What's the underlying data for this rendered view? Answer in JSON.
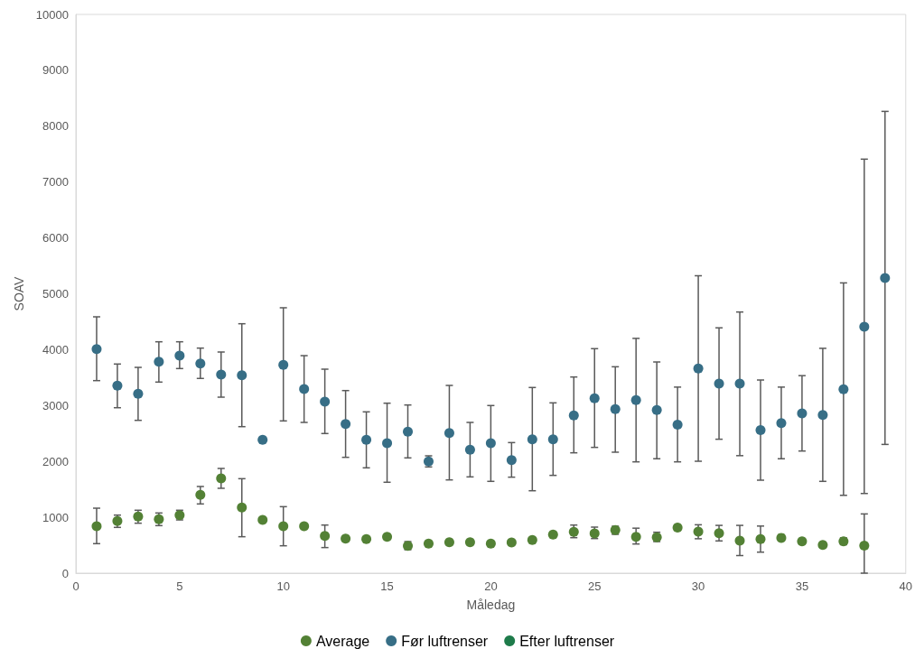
{
  "chart_data": {
    "type": "scatter",
    "xlabel": "Måledag",
    "ylabel": "SOAV",
    "xlim": [
      0,
      40
    ],
    "xticks": [
      0,
      5,
      10,
      15,
      20,
      25,
      30,
      35,
      40
    ],
    "ylim": [
      0,
      10000
    ],
    "yticks": [
      0,
      1000,
      2000,
      3000,
      4000,
      5000,
      6000,
      7000,
      8000,
      9000,
      10000
    ],
    "grid": false,
    "legend": "bottom",
    "marker": "circle",
    "series": [
      {
        "name": "Average",
        "color": "#538135",
        "x": [
          1,
          2,
          3,
          4,
          5,
          6,
          7,
          8,
          9,
          10,
          11,
          12,
          13,
          14,
          15,
          16,
          17,
          18,
          19,
          20,
          21,
          22,
          23,
          24,
          25,
          26,
          27,
          28,
          29,
          30,
          31,
          32,
          33,
          34,
          35,
          36,
          37,
          38
        ],
        "values": [
          840,
          932,
          1013,
          964,
          1039,
          1400,
          1696,
          1174,
          953,
          840,
          840,
          668,
          619,
          609,
          652,
          490,
          528,
          555,
          555,
          528,
          549,
          592,
          690,
          738,
          711,
          770,
          649,
          643,
          816,
          743,
          716,
          582,
          609,
          632,
          570,
          504,
          570,
          493
        ],
        "errors": [
          [
            528,
            1163
          ],
          [
            819,
            1039
          ],
          [
            894,
            1126
          ],
          [
            851,
            1077
          ],
          [
            953,
            1126
          ],
          [
            1239,
            1551
          ],
          [
            1519,
            1874
          ],
          [
            652,
            1691
          ],
          null,
          [
            490,
            1190
          ],
          null,
          [
            458,
            861
          ],
          null,
          null,
          null,
          [
            420,
            565
          ],
          null,
          null,
          null,
          null,
          null,
          null,
          null,
          [
            635,
            861
          ],
          [
            619,
            824
          ],
          [
            695,
            840
          ],
          [
            522,
            805
          ],
          [
            565,
            732
          ],
          null,
          [
            616,
            866
          ],
          [
            577,
            855
          ],
          [
            315,
            855
          ],
          [
            376,
            843
          ],
          null,
          null,
          null,
          [
            510,
            632
          ],
          [
            0,
            1060
          ]
        ]
      },
      {
        "name": "Før luftrenser",
        "color": "#376e86",
        "x": [
          1,
          2,
          3,
          4,
          5,
          6,
          7,
          8,
          9,
          10,
          11,
          12,
          13,
          14,
          15,
          16,
          17,
          18,
          19,
          20,
          21,
          22,
          23,
          24,
          25,
          26,
          27,
          28,
          29,
          30,
          31,
          32,
          33,
          34,
          35,
          36,
          37,
          38,
          39
        ],
        "values": [
          4012,
          3355,
          3210,
          3786,
          3893,
          3753,
          3554,
          3543,
          2386,
          3727,
          3296,
          3069,
          2671,
          2386,
          2326,
          2531,
          1998,
          2509,
          2208,
          2326,
          2025,
          2396,
          2396,
          2822,
          3129,
          2935,
          3097,
          2919,
          2659,
          3664,
          3391,
          3391,
          2559,
          2687,
          2858,
          2830,
          3291,
          4412,
          5284
        ],
        "errors": [
          [
            3446,
            4588
          ],
          [
            2961,
            3743
          ],
          [
            2735,
            3683
          ],
          [
            3420,
            4141
          ],
          [
            3662,
            4141
          ],
          [
            3485,
            4028
          ],
          [
            3150,
            3958
          ],
          [
            2622,
            4464
          ],
          null,
          [
            2725,
            4750
          ],
          [
            2698,
            3893
          ],
          [
            2499,
            3651
          ],
          [
            2073,
            3268
          ],
          [
            1885,
            2887
          ],
          [
            1627,
            3042
          ],
          [
            2063,
            3010
          ],
          [
            1901,
            2100
          ],
          [
            1669,
            3360
          ],
          [
            1723,
            2698
          ],
          [
            1643,
            3000
          ],
          [
            1718,
            2337
          ],
          [
            1475,
            3323
          ],
          [
            1750,
            3048
          ],
          [
            2154,
            3511
          ],
          [
            2251,
            4018
          ],
          [
            2165,
            3694
          ],
          [
            1992,
            4202
          ],
          [
            2048,
            3780
          ],
          [
            1992,
            3330
          ],
          [
            2003,
            5323
          ],
          [
            2397,
            4391
          ],
          [
            2103,
            4674
          ],
          [
            1664,
            3457
          ],
          [
            2048,
            3330
          ],
          [
            2186,
            3535
          ],
          [
            1643,
            4024
          ],
          [
            1393,
            5195
          ],
          [
            1426,
            7410
          ],
          [
            2304,
            8265
          ]
        ]
      },
      {
        "name": "Efter luftrenser",
        "color": "#1e7b4a"
      }
    ]
  }
}
